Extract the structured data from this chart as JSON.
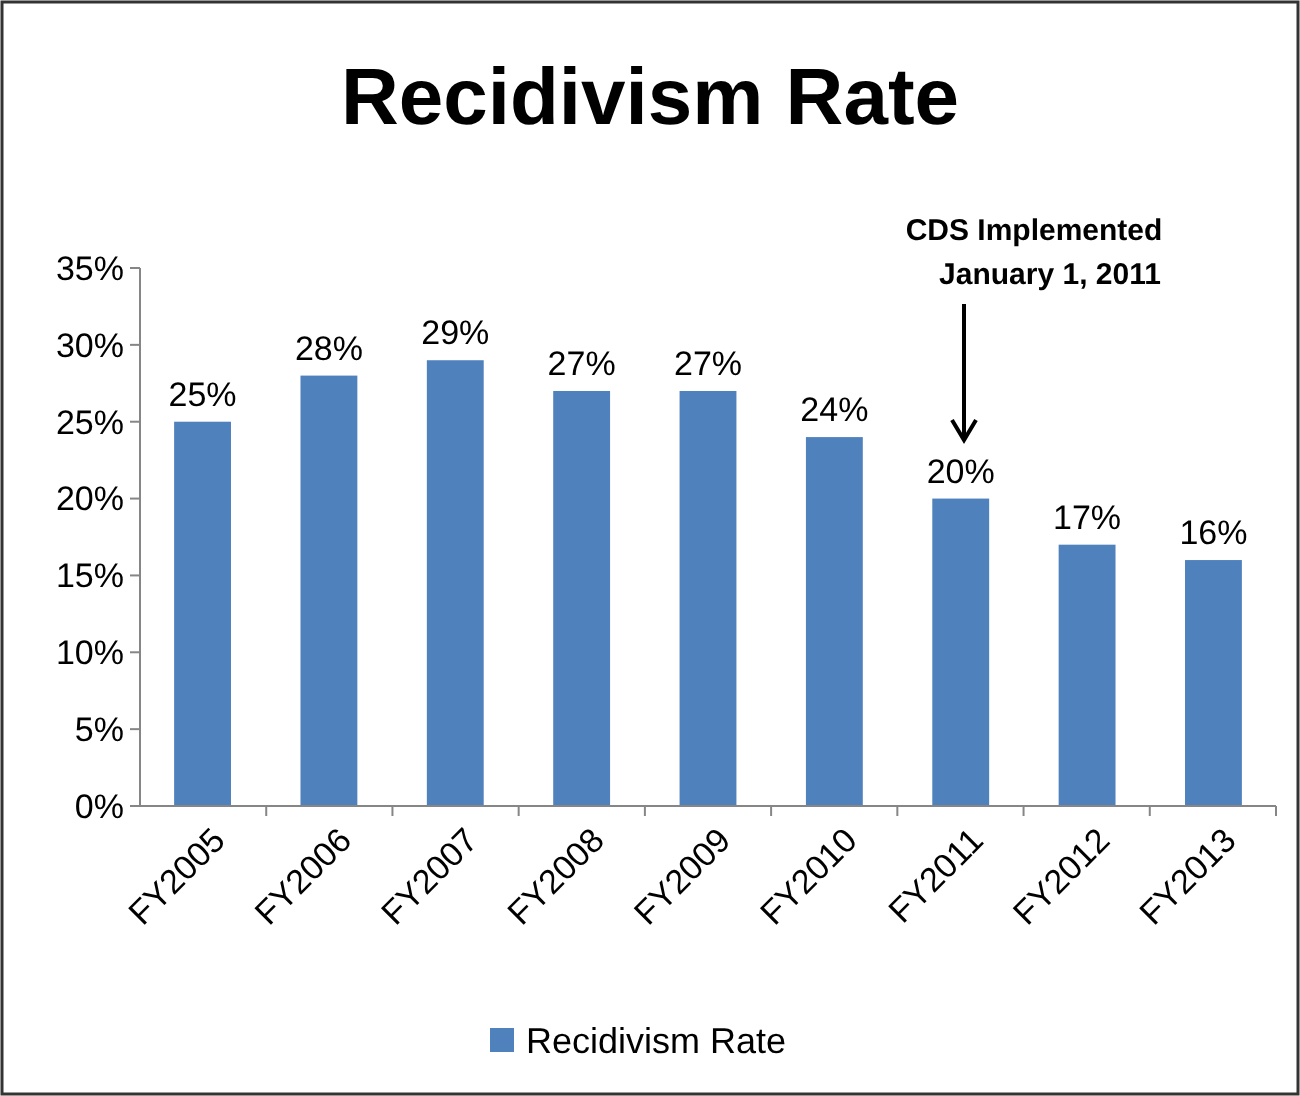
{
  "chart_data": {
    "type": "bar",
    "title": "Recidivism Rate",
    "categories": [
      "FY2005",
      "FY2006",
      "FY2007",
      "FY2008",
      "FY2009",
      "FY2010",
      "FY2011",
      "FY2012",
      "FY2013"
    ],
    "series": [
      {
        "name": "Recidivism Rate",
        "color": "#4f81bd",
        "values": [
          25,
          28,
          29,
          27,
          27,
          24,
          20,
          17,
          16
        ],
        "value_labels": [
          "25%",
          "28%",
          "29%",
          "27%",
          "27%",
          "24%",
          "20%",
          "17%",
          "16%"
        ]
      }
    ],
    "ylim": [
      0,
      35
    ],
    "yticks": [
      {
        "value": 0,
        "label": "0%"
      },
      {
        "value": 5,
        "label": "5%"
      },
      {
        "value": 10,
        "label": "10%"
      },
      {
        "value": 15,
        "label": "15%"
      },
      {
        "value": 20,
        "label": "20%"
      },
      {
        "value": 25,
        "label": "25%"
      },
      {
        "value": 30,
        "label": "30%"
      },
      {
        "value": 35,
        "label": "35%"
      }
    ],
    "annotations": [
      "CDS Implemented\nJanuary 1, 2011"
    ],
    "grid": false,
    "legend": "bottom"
  }
}
